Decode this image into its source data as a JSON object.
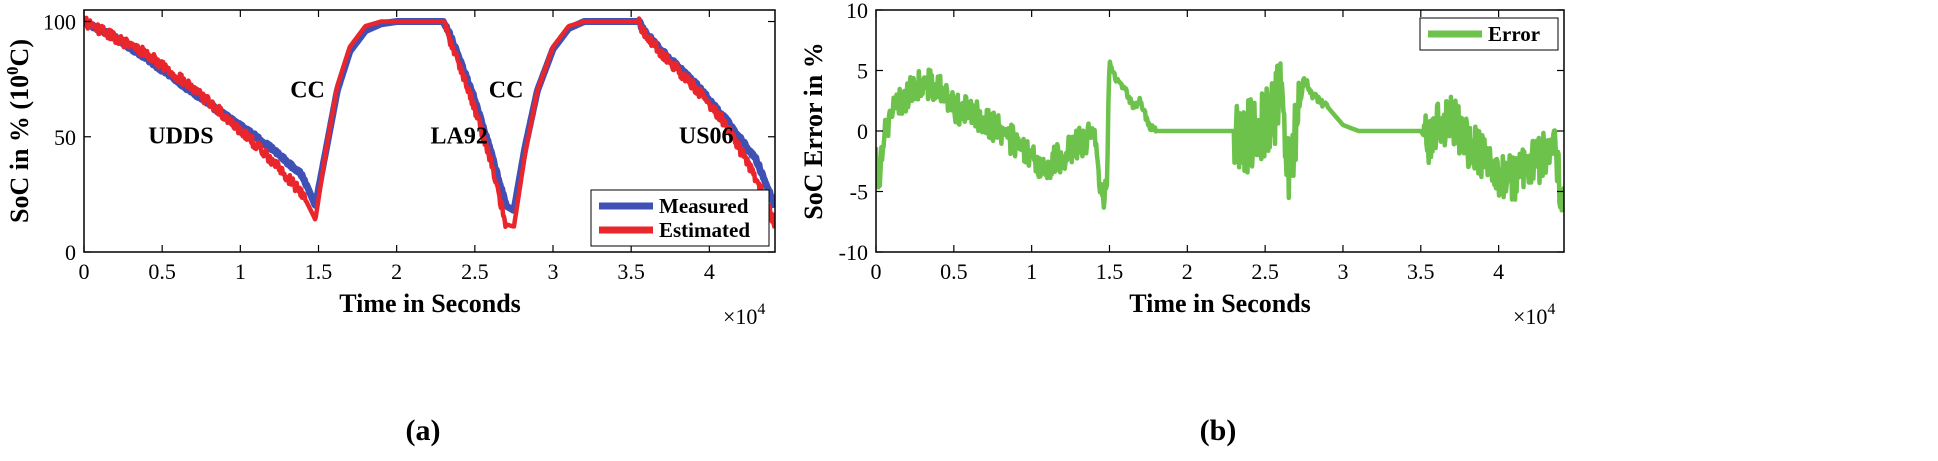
{
  "chart_data": [
    {
      "type": "line",
      "panel": "a",
      "caption": "(a)",
      "xlabel": "Time in Seconds",
      "ylabel_main": "SoC in % (10",
      "ylabel_sup": "0",
      "ylabel_tail": "C)",
      "x_multiplier_base": "×10",
      "x_multiplier_exp": "4",
      "xlim": [
        0,
        4.42
      ],
      "ylim": [
        0,
        105
      ],
      "xticks": [
        0,
        0.5,
        1,
        1.5,
        2,
        2.5,
        3,
        3.5,
        4
      ],
      "xtick_labels": [
        "0",
        "0.5",
        "1",
        "1.5",
        "2",
        "2.5",
        "3",
        "3.5",
        "4"
      ],
      "yticks": [
        0,
        50,
        100
      ],
      "ytick_labels": [
        "0",
        "50",
        "100"
      ],
      "annotations": [
        {
          "text": "UDDS",
          "x": 0.62,
          "y": 47
        },
        {
          "text": "CC",
          "x": 1.43,
          "y": 67
        },
        {
          "text": "LA92",
          "x": 2.4,
          "y": 47
        },
        {
          "text": "CC",
          "x": 2.7,
          "y": 67
        },
        {
          "text": "US06",
          "x": 3.98,
          "y": 47
        }
      ],
      "legend": {
        "position": "bottom-right"
      },
      "series": [
        {
          "name": "Measured",
          "color": "#3f51b5",
          "x": [
            0,
            0.2,
            0.4,
            0.6,
            0.8,
            1.0,
            1.2,
            1.4,
            1.48,
            1.55,
            1.62,
            1.7,
            1.8,
            1.9,
            2.0,
            2.3,
            2.33,
            2.4,
            2.5,
            2.6,
            2.7,
            2.75,
            2.82,
            2.9,
            3.0,
            3.1,
            3.2,
            3.55,
            3.58,
            3.7,
            3.9,
            4.1,
            4.3,
            4.42
          ],
          "y": [
            100,
            93,
            84,
            74,
            64,
            55,
            45,
            33,
            20,
            45,
            70,
            87,
            96,
            99,
            100,
            100,
            96,
            84,
            66,
            44,
            20,
            18,
            45,
            70,
            88,
            97,
            100,
            100,
            96,
            87,
            74,
            58,
            40,
            20
          ]
        },
        {
          "name": "Estimated",
          "color": "#e8262c",
          "x": [
            0,
            0.2,
            0.4,
            0.6,
            0.8,
            1.0,
            1.2,
            1.4,
            1.48,
            1.55,
            1.62,
            1.7,
            1.8,
            1.9,
            2.0,
            2.3,
            2.33,
            2.4,
            2.5,
            2.6,
            2.7,
            2.75,
            2.82,
            2.9,
            3.0,
            3.1,
            3.2,
            3.55,
            3.58,
            3.7,
            3.9,
            4.1,
            4.3,
            4.42
          ],
          "y": [
            100,
            93,
            86,
            76,
            65,
            53,
            40,
            25,
            14,
            45,
            72,
            89,
            98,
            100,
            100,
            100,
            94,
            82,
            62,
            40,
            12,
            11,
            42,
            70,
            89,
            98,
            100,
            100,
            95,
            86,
            72,
            56,
            32,
            12
          ]
        }
      ]
    },
    {
      "type": "line",
      "panel": "b",
      "caption": "(b)",
      "xlabel": "Time in Seconds",
      "ylabel": "SoC Error in %",
      "x_multiplier_base": "×10",
      "x_multiplier_exp": "4",
      "xlim": [
        0,
        4.42
      ],
      "ylim": [
        -10,
        10
      ],
      "xticks": [
        0,
        0.5,
        1,
        1.5,
        2,
        2.5,
        3,
        3.5,
        4
      ],
      "xtick_labels": [
        "0",
        "0.5",
        "1",
        "1.5",
        "2",
        "2.5",
        "3",
        "3.5",
        "4"
      ],
      "yticks": [
        -10,
        -5,
        0,
        5,
        10
      ],
      "ytick_labels": [
        "-10",
        "-5",
        "0",
        "5",
        "10"
      ],
      "legend": {
        "position": "top-right"
      },
      "series": [
        {
          "name": "Error",
          "color": "#6cc24a",
          "x": [
            0,
            0.02,
            0.05,
            0.1,
            0.2,
            0.3,
            0.4,
            0.5,
            0.6,
            0.7,
            0.8,
            0.9,
            1.0,
            1.1,
            1.2,
            1.3,
            1.4,
            1.45,
            1.48,
            1.5,
            1.53,
            1.6,
            1.65,
            1.7,
            1.75,
            1.8,
            1.9,
            2.0,
            2.3,
            2.35,
            2.45,
            2.55,
            2.6,
            2.65,
            2.7,
            2.75,
            2.8,
            2.9,
            3.0,
            3.1,
            3.2,
            3.3,
            3.5,
            3.55,
            3.6,
            3.7,
            3.8,
            3.9,
            4.0,
            4.1,
            4.2,
            4.3,
            4.35,
            4.4,
            4.42
          ],
          "y": [
            -2,
            -4,
            0,
            1.5,
            3,
            4,
            3.5,
            2,
            1.5,
            1,
            0,
            -1,
            -2.5,
            -3,
            -2,
            -1,
            -0.5,
            -5.5,
            -5,
            5.8,
            4.5,
            3.5,
            2,
            2.5,
            0.5,
            0,
            0,
            0,
            0,
            -1,
            0.5,
            1.5,
            3,
            -3,
            0.5,
            4.5,
            3,
            2,
            0.5,
            0,
            0,
            0,
            0,
            -1,
            0.5,
            1,
            -1,
            -2,
            -3.5,
            -4,
            -3,
            -2,
            -1,
            -5,
            -6
          ]
        }
      ]
    }
  ]
}
